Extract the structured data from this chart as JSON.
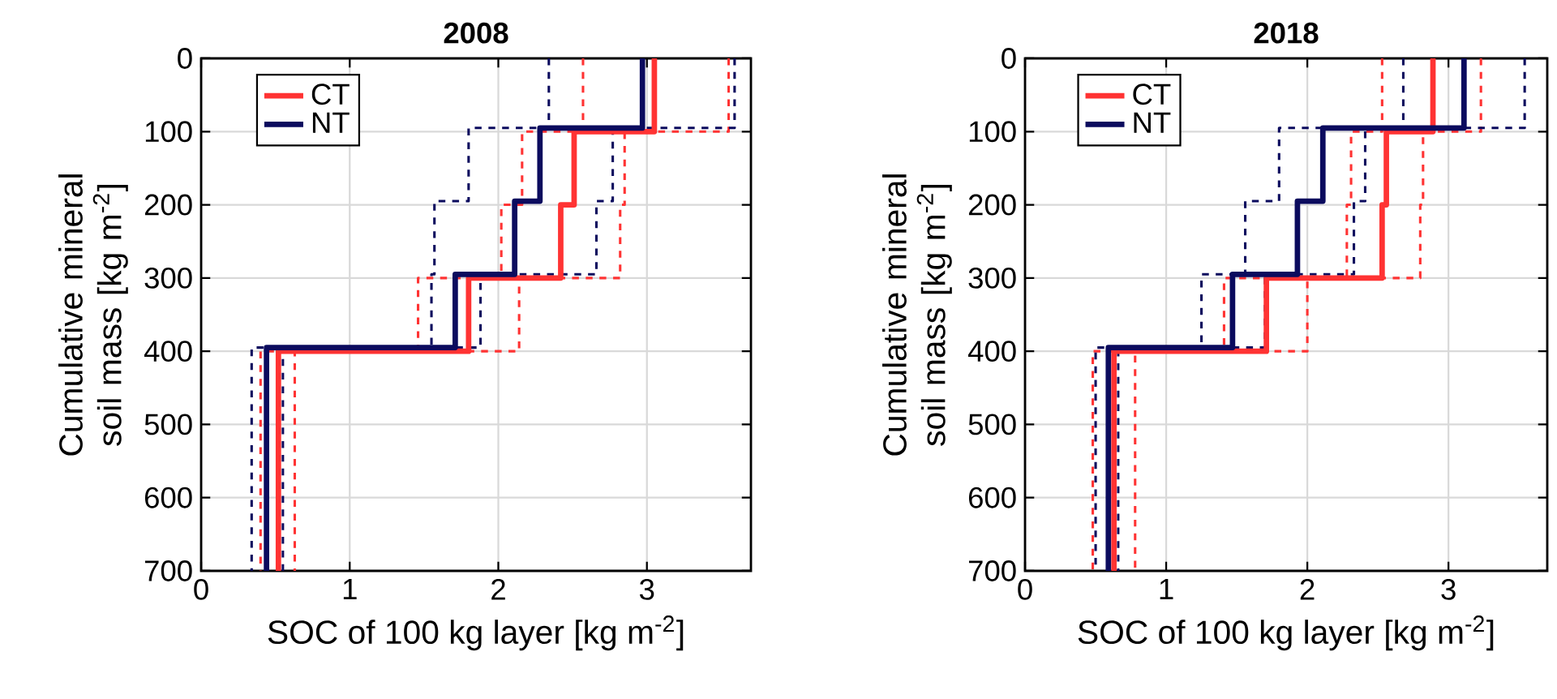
{
  "chart_data": [
    {
      "type": "line",
      "title": "2008",
      "xlabel": "SOC of 100 kg layer [kg m$^{-2}$]",
      "ylabel": "Cumulative mineral soil mass [kg m$^{-2}$]",
      "xlim": [
        0,
        3.7
      ],
      "xticks": [
        0,
        1,
        2,
        3
      ],
      "ylim": [
        700,
        0
      ],
      "yticks": [
        0,
        100,
        200,
        300,
        400,
        500,
        600,
        700
      ],
      "grid": true,
      "legend": "top left",
      "series": [
        {
          "name": "CT",
          "color": "#ff3333",
          "line_style": "solid",
          "x": [
            3.05,
            3.05,
            2.51,
            2.51,
            2.42,
            2.42,
            1.8,
            1.8,
            0.52,
            0.52
          ],
          "values": [
            0,
            100,
            100,
            200,
            200,
            300,
            300,
            400,
            400,
            700
          ]
        },
        {
          "name": "NT",
          "color": "#0b0b5e",
          "line_style": "solid",
          "x": [
            2.97,
            2.97,
            2.28,
            2.28,
            2.11,
            2.11,
            1.71,
            1.71,
            0.44,
            0.44
          ],
          "values": [
            0,
            95,
            95,
            195,
            195,
            295,
            295,
            395,
            395,
            700
          ]
        },
        {
          "color": "#ff3333",
          "line_style": "dashed",
          "x": [
            2.57,
            2.57,
            2.16,
            2.16,
            2.02,
            2.02,
            1.46,
            1.46,
            0.4,
            0.4
          ],
          "values": [
            0,
            100,
            100,
            200,
            200,
            300,
            300,
            400,
            400,
            700
          ]
        },
        {
          "color": "#ff3333",
          "line_style": "dashed",
          "x": [
            3.55,
            3.55,
            2.85,
            2.85,
            2.82,
            2.82,
            2.14,
            2.14,
            0.63,
            0.63
          ],
          "values": [
            0,
            100,
            100,
            200,
            200,
            300,
            300,
            400,
            400,
            700
          ]
        },
        {
          "color": "#0b0b5e",
          "line_style": "dashed",
          "x": [
            2.34,
            2.34,
            1.8,
            1.8,
            1.57,
            1.57,
            1.55,
            1.55,
            0.34,
            0.34
          ],
          "values": [
            0,
            95,
            95,
            195,
            195,
            295,
            295,
            395,
            395,
            700
          ]
        },
        {
          "color": "#0b0b5e",
          "line_style": "dashed",
          "x": [
            3.59,
            3.59,
            2.77,
            2.77,
            2.66,
            2.66,
            1.88,
            1.88,
            0.55,
            0.55
          ],
          "values": [
            0,
            95,
            95,
            195,
            195,
            295,
            295,
            395,
            395,
            700
          ]
        }
      ]
    },
    {
      "type": "line",
      "title": "2018",
      "xlabel": "SOC of 100 kg layer [kg m$^{-2}$]",
      "ylabel": "Cumulative mineral soil mass [kg m$^{-2}$]",
      "xlim": [
        0,
        3.7
      ],
      "xticks": [
        0,
        1,
        2,
        3
      ],
      "ylim": [
        700,
        0
      ],
      "yticks": [
        0,
        100,
        200,
        300,
        400,
        500,
        600,
        700
      ],
      "grid": true,
      "legend": "top left",
      "series": [
        {
          "name": "CT",
          "color": "#ff3333",
          "line_style": "solid",
          "x": [
            2.89,
            2.89,
            2.56,
            2.56,
            2.53,
            2.53,
            1.71,
            1.71,
            0.63,
            0.63
          ],
          "values": [
            0,
            100,
            100,
            200,
            200,
            300,
            300,
            400,
            400,
            700
          ]
        },
        {
          "name": "NT",
          "color": "#0b0b5e",
          "line_style": "solid",
          "x": [
            3.11,
            3.11,
            2.11,
            2.11,
            1.93,
            1.93,
            1.47,
            1.47,
            0.59,
            0.59
          ],
          "values": [
            0,
            95,
            95,
            195,
            195,
            295,
            295,
            395,
            395,
            700
          ]
        },
        {
          "color": "#ff3333",
          "line_style": "dashed",
          "x": [
            2.53,
            2.53,
            2.31,
            2.31,
            2.28,
            2.28,
            1.41,
            1.41,
            0.48,
            0.48
          ],
          "values": [
            0,
            100,
            100,
            200,
            200,
            300,
            300,
            400,
            400,
            700
          ]
        },
        {
          "color": "#ff3333",
          "line_style": "dashed",
          "x": [
            3.23,
            3.23,
            2.82,
            2.82,
            2.8,
            2.8,
            2.0,
            2.0,
            0.78,
            0.78
          ],
          "values": [
            0,
            100,
            100,
            200,
            200,
            300,
            300,
            400,
            400,
            700
          ]
        },
        {
          "color": "#0b0b5e",
          "line_style": "dashed",
          "x": [
            2.68,
            2.68,
            1.8,
            1.8,
            1.56,
            1.56,
            1.25,
            1.25,
            0.5,
            0.5
          ],
          "values": [
            0,
            95,
            95,
            195,
            195,
            295,
            295,
            395,
            395,
            700
          ]
        },
        {
          "color": "#0b0b5e",
          "line_style": "dashed",
          "x": [
            3.54,
            3.54,
            2.41,
            2.41,
            2.33,
            2.33,
            1.7,
            1.7,
            0.66,
            0.66
          ],
          "values": [
            0,
            95,
            95,
            195,
            195,
            295,
            295,
            395,
            395,
            700
          ]
        }
      ]
    }
  ]
}
